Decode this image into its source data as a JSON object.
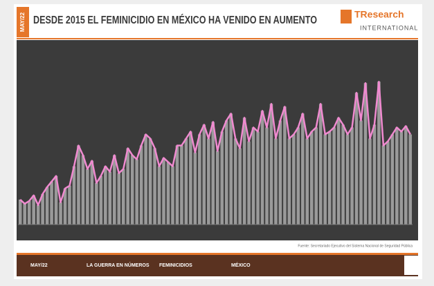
{
  "chart_data": {
    "type": "bar-line",
    "title": "DESDE 2015 EL FEMINICIDIO EN MÉXICO HA VENIDO EN AUMENTO",
    "side_label": "MAY/22",
    "brand": "TResearch",
    "brand_sub": "INTERNATIONAL",
    "source": "Fuente: Secretariado Ejecutivo del Sistema Nacional de Seguridad Pública",
    "footer": [
      "MAY/22",
      "LA GUERRA EN NÚMEROS",
      "FEMINICIDIOS",
      "MÉXICO"
    ],
    "values": [
      18,
      15,
      17,
      21,
      14,
      22,
      27,
      31,
      35,
      16,
      26,
      28,
      42,
      57,
      50,
      40,
      46,
      30,
      35,
      42,
      38,
      50,
      37,
      40,
      55,
      50,
      47,
      57,
      65,
      62,
      55,
      42,
      48,
      45,
      42,
      57,
      57,
      62,
      67,
      52,
      65,
      72,
      62,
      74,
      53,
      67,
      75,
      80,
      62,
      55,
      77,
      60,
      70,
      67,
      82,
      70,
      87,
      62,
      75,
      85,
      62,
      65,
      70,
      80,
      62,
      67,
      70,
      87,
      65,
      67,
      70,
      77,
      72,
      65,
      70,
      95,
      75,
      102,
      62,
      72,
      103,
      57,
      60,
      65,
      70,
      67,
      71,
      65
    ],
    "bar_color": "#9a9a9a",
    "line_color": "#f08ad0",
    "ylim": [
      0,
      132
    ]
  }
}
